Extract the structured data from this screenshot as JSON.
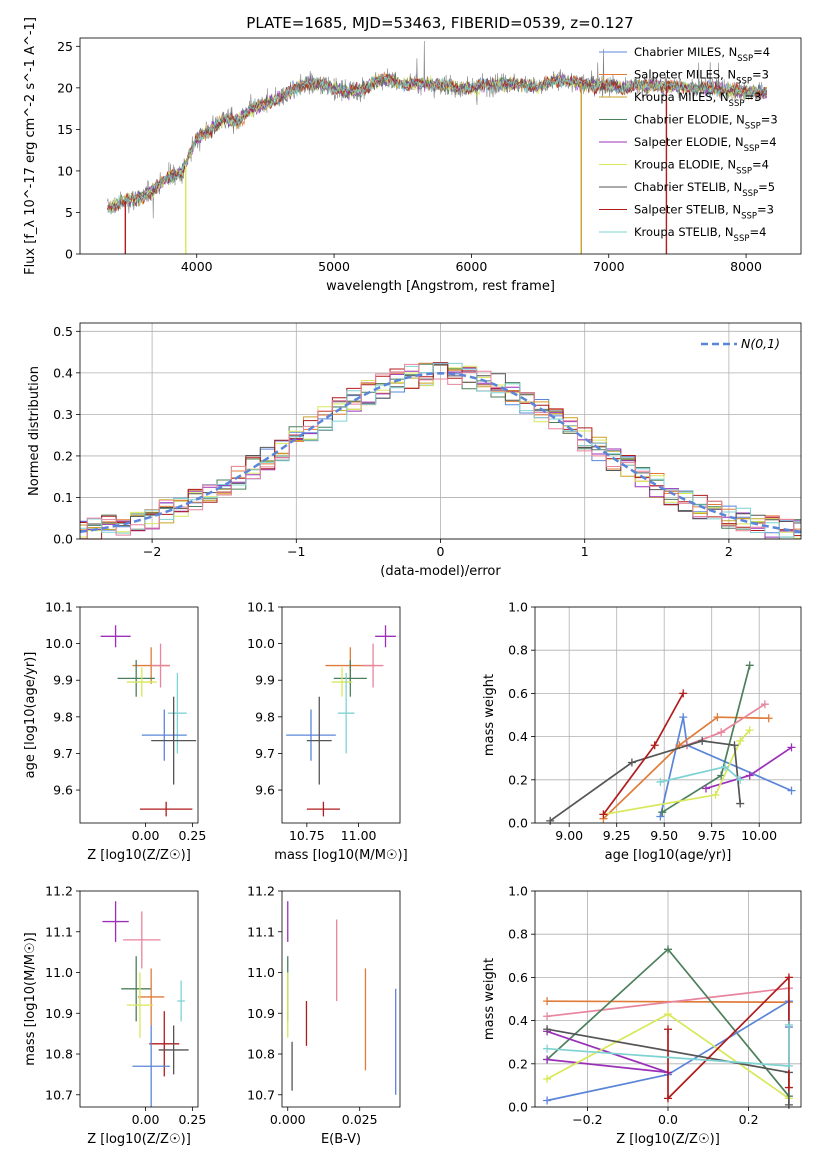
{
  "figure": {
    "title": "PLATE=1685, MJD=53463, FIBERID=0539, z=0.127"
  },
  "chart_data": [
    {
      "id": "spectrum",
      "type": "line",
      "xlabel": "wavelength [Angstrom, rest frame]",
      "ylabel": "Flux [f_λ 10^-17 erg cm^-2 s^-1 A^-1]",
      "xlim": [
        3150,
        8400
      ],
      "ylim": [
        0,
        26
      ],
      "xticks": [
        4000,
        5000,
        6000,
        7000,
        8000
      ],
      "yticks": [
        0,
        5,
        10,
        15,
        20,
        25
      ],
      "grid": false,
      "legend_position": "upper-right",
      "continuum": {
        "x": [
          3350,
          3500,
          3600,
          3700,
          3800,
          3900,
          4000,
          4100,
          4200,
          4300,
          4400,
          4500,
          4600,
          4700,
          4800,
          4900,
          5000,
          5100,
          5200,
          5300,
          5400,
          5500,
          5600,
          5700,
          5800,
          5900,
          6000,
          6100,
          6200,
          6300,
          6400,
          6500,
          6600,
          6700,
          6800,
          6900,
          7000,
          7100,
          7200,
          7300,
          7400,
          7500,
          7600,
          7700,
          7800,
          7900,
          8000,
          8100,
          8150
        ],
        "y": [
          5.5,
          6.5,
          6.8,
          8.0,
          9.3,
          10.0,
          14.0,
          15.0,
          16.2,
          16.0,
          17.5,
          18.0,
          18.8,
          19.8,
          20.5,
          20.5,
          20.0,
          19.5,
          19.8,
          20.8,
          21.0,
          20.5,
          20.5,
          20.5,
          20.3,
          20.0,
          20.0,
          20.3,
          20.5,
          20.5,
          20.4,
          20.0,
          21.0,
          20.8,
          20.5,
          20.3,
          20.3,
          20.0,
          20.3,
          20.3,
          20.2,
          20.2,
          20.0,
          20.0,
          19.8,
          19.7,
          19.5,
          19.5,
          19.5
        ]
      },
      "series": [
        {
          "name": "Chabrier MILES, N_SSP=4",
          "color": "#5b85d9"
        },
        {
          "name": "Salpeter MILES, N_SSP=3",
          "color": "#e07b39"
        },
        {
          "name": "Kroupa MILES, N_SSP=3",
          "color": "#c9a227"
        },
        {
          "name": "Chabrier ELODIE, N_SSP=3",
          "color": "#4c7f5b"
        },
        {
          "name": "Salpeter ELODIE, N_SSP=4",
          "color": "#9b30b8"
        },
        {
          "name": "Kroupa ELODIE, N_SSP=4",
          "color": "#d8e85a"
        },
        {
          "name": "Chabrier STELIB, N_SSP=5",
          "color": "#555555"
        },
        {
          "name": "Salpeter STELIB, N_SSP=3",
          "color": "#b01c1c"
        },
        {
          "name": "Kroupa STELIB, N_SSP=4",
          "color": "#7fd2d2"
        }
      ],
      "spikes": [
        {
          "x": 3480,
          "color": "#b01c1c"
        },
        {
          "x": 3920,
          "color": "#d8e85a"
        },
        {
          "x": 6800,
          "color": "#c9a227"
        },
        {
          "x": 7420,
          "color": "#b01c1c"
        }
      ]
    },
    {
      "id": "residuals",
      "type": "line",
      "xlabel": "(data-model)/error",
      "ylabel": "Normed distribution",
      "xlim": [
        -2.5,
        2.5
      ],
      "ylim": [
        0,
        0.52
      ],
      "xticks": [
        -2,
        -1,
        0,
        1,
        2
      ],
      "yticks": [
        0.0,
        0.1,
        0.2,
        0.3,
        0.4,
        0.5
      ],
      "grid": true,
      "legend_position": "upper-right",
      "reference": {
        "name": "N(0,1)",
        "color": "#5b85d9",
        "style": "dashed"
      },
      "bin_width": 0.1
    },
    {
      "id": "age-vs-Z",
      "type": "errorbar",
      "xlabel": "Z [log10(Z/Z☉)]",
      "ylabel": "age  [log10(age/yr)]",
      "xlim": [
        -0.35,
        0.28
      ],
      "ylim": [
        9.51,
        10.1
      ],
      "xticks": [
        0.0,
        0.25
      ],
      "yticks": [
        9.6,
        9.7,
        9.8,
        9.9,
        10.0,
        10.1
      ],
      "points": [
        {
          "x": -0.16,
          "y": 10.02,
          "xerr": 0.08,
          "yerr": 0.03,
          "color": "#9b30b8"
        },
        {
          "x": 0.03,
          "y": 9.94,
          "xerr": 0.1,
          "yerr": 0.05,
          "color": "#e07b39"
        },
        {
          "x": 0.08,
          "y": 9.94,
          "xerr": 0.05,
          "yerr": 0.06,
          "color": "#e8849c"
        },
        {
          "x": -0.05,
          "y": 9.905,
          "xerr": 0.1,
          "yerr": 0.05,
          "color": "#4c7f5b"
        },
        {
          "x": -0.02,
          "y": 9.895,
          "xerr": 0.08,
          "yerr": 0.04,
          "color": "#d8e85a"
        },
        {
          "x": 0.17,
          "y": 9.81,
          "xerr": 0.05,
          "yerr": 0.11,
          "color": "#7fd2d2"
        },
        {
          "x": 0.1,
          "y": 9.75,
          "xerr": 0.12,
          "yerr": 0.07,
          "color": "#5b85d9"
        },
        {
          "x": 0.15,
          "y": 9.735,
          "xerr": 0.12,
          "yerr": 0.12,
          "color": "#555555"
        },
        {
          "x": 0.11,
          "y": 9.548,
          "xerr": 0.14,
          "yerr": 0.02,
          "color": "#b01c1c"
        }
      ]
    },
    {
      "id": "age-vs-mass",
      "type": "errorbar",
      "xlabel": "mass [log10(M/M☉)]",
      "ylabel": "",
      "xlim": [
        10.63,
        11.2
      ],
      "ylim": [
        9.51,
        10.1
      ],
      "xticks": [
        10.75,
        11.0
      ],
      "yticks": [
        9.6,
        9.7,
        9.8,
        9.9,
        10.0,
        10.1
      ],
      "points": [
        {
          "x": 11.13,
          "y": 10.02,
          "xerr": 0.05,
          "yerr": 0.03,
          "color": "#9b30b8"
        },
        {
          "x": 10.96,
          "y": 9.94,
          "xerr": 0.12,
          "yerr": 0.05,
          "color": "#e07b39"
        },
        {
          "x": 11.07,
          "y": 9.94,
          "xerr": 0.05,
          "yerr": 0.06,
          "color": "#e8849c"
        },
        {
          "x": 10.96,
          "y": 9.905,
          "xerr": 0.08,
          "yerr": 0.05,
          "color": "#4c7f5b"
        },
        {
          "x": 10.92,
          "y": 9.895,
          "xerr": 0.05,
          "yerr": 0.04,
          "color": "#d8e85a"
        },
        {
          "x": 10.94,
          "y": 9.81,
          "xerr": 0.04,
          "yerr": 0.11,
          "color": "#7fd2d2"
        },
        {
          "x": 10.77,
          "y": 9.75,
          "xerr": 0.12,
          "yerr": 0.07,
          "color": "#5b85d9"
        },
        {
          "x": 10.81,
          "y": 9.735,
          "xerr": 0.06,
          "yerr": 0.12,
          "color": "#555555"
        },
        {
          "x": 10.83,
          "y": 9.548,
          "xerr": 0.08,
          "yerr": 0.02,
          "color": "#b01c1c"
        }
      ]
    },
    {
      "id": "weight-vs-age",
      "type": "line",
      "xlabel": "age  [log10(age/yr)]",
      "ylabel": "mass weight",
      "xlim": [
        8.82,
        10.22
      ],
      "ylim": [
        0,
        1.0
      ],
      "xticks": [
        9.0,
        9.25,
        9.5,
        9.75,
        10.0
      ],
      "yticks": [
        0.0,
        0.2,
        0.4,
        0.6,
        0.8,
        1.0
      ],
      "grid": true,
      "series": [
        {
          "color": "#5b85d9",
          "x": [
            9.48,
            9.6,
            9.62,
            10.17
          ],
          "y": [
            0.03,
            0.49,
            0.36,
            0.15
          ]
        },
        {
          "color": "#e07b39",
          "x": [
            9.18,
            9.58,
            9.78,
            10.05
          ],
          "y": [
            0.02,
            0.36,
            0.49,
            0.485
          ]
        },
        {
          "color": "#4c7f5b",
          "x": [
            9.49,
            9.8,
            9.95
          ],
          "y": [
            0.05,
            0.22,
            0.73
          ]
        },
        {
          "color": "#9b30b8",
          "x": [
            9.72,
            9.95,
            10.17
          ],
          "y": [
            0.16,
            0.22,
            0.35
          ]
        },
        {
          "color": "#d8e85a",
          "x": [
            9.18,
            9.77,
            9.9,
            9.95
          ],
          "y": [
            0.04,
            0.13,
            0.38,
            0.43
          ]
        },
        {
          "color": "#e8849c",
          "x": [
            9.62,
            9.8,
            10.03
          ],
          "y": [
            0.36,
            0.42,
            0.55
          ]
        },
        {
          "color": "#555555",
          "x": [
            8.9,
            9.33,
            9.7,
            9.87,
            9.9
          ],
          "y": [
            0.01,
            0.28,
            0.38,
            0.36,
            0.09
          ]
        },
        {
          "color": "#b01c1c",
          "x": [
            9.18,
            9.45,
            9.6
          ],
          "y": [
            0.04,
            0.36,
            0.6
          ]
        },
        {
          "color": "#7fd2d2",
          "x": [
            9.48,
            9.82,
            9.9
          ],
          "y": [
            0.19,
            0.26,
            0.2
          ]
        }
      ]
    },
    {
      "id": "mass-vs-Z",
      "type": "errorbar",
      "xlabel": "Z [log10(Z/Z☉)]",
      "ylabel": "mass [log10(M/M☉)]",
      "xlim": [
        -0.35,
        0.28
      ],
      "ylim": [
        10.67,
        11.2
      ],
      "xticks": [
        0.0,
        0.25
      ],
      "yticks": [
        10.7,
        10.8,
        10.9,
        11.0,
        11.1,
        11.2
      ],
      "points": [
        {
          "x": -0.16,
          "y": 11.125,
          "xerr": 0.07,
          "yerr": 0.05,
          "color": "#9b30b8"
        },
        {
          "x": -0.02,
          "y": 11.08,
          "xerr": 0.1,
          "yerr": 0.07,
          "color": "#e8849c"
        },
        {
          "x": -0.05,
          "y": 10.96,
          "xerr": 0.08,
          "yerr": 0.08,
          "color": "#4c7f5b"
        },
        {
          "x": 0.03,
          "y": 10.94,
          "xerr": 0.07,
          "yerr": 0.07,
          "color": "#e07b39"
        },
        {
          "x": -0.03,
          "y": 10.92,
          "xerr": 0.07,
          "yerr": 0.08,
          "color": "#d8e85a"
        },
        {
          "x": 0.19,
          "y": 10.93,
          "xerr": 0.02,
          "yerr": 0.05,
          "color": "#7fd2d2"
        },
        {
          "x": 0.1,
          "y": 10.825,
          "xerr": 0.08,
          "yerr": 0.08,
          "color": "#b01c1c"
        },
        {
          "x": 0.15,
          "y": 10.81,
          "xerr": 0.08,
          "yerr": 0.06,
          "color": "#555555"
        },
        {
          "x": 0.03,
          "y": 10.77,
          "xerr": 0.1,
          "yerr": 0.1,
          "color": "#5b85d9"
        }
      ]
    },
    {
      "id": "mass-vs-EBV",
      "type": "errorbar",
      "xlabel": "E(B-V)",
      "ylabel": "",
      "xlim": [
        -0.002,
        0.039
      ],
      "ylim": [
        10.67,
        11.2
      ],
      "xticks": [
        0.0,
        0.025
      ],
      "yticks": [
        10.7,
        10.8,
        10.9,
        11.0,
        11.1,
        11.2
      ],
      "points": [
        {
          "x": 0.0,
          "y": 11.125,
          "yerr": 0.05,
          "color": "#9b30b8"
        },
        {
          "x": 0.0,
          "y": 10.96,
          "yerr": 0.08,
          "color": "#4c7f5b"
        },
        {
          "x": 0.0,
          "y": 10.92,
          "yerr": 0.08,
          "color": "#d8e85a"
        },
        {
          "x": 0.0015,
          "y": 10.77,
          "yerr": 0.06,
          "color": "#555555"
        },
        {
          "x": 0.0065,
          "y": 10.875,
          "yerr": 0.055,
          "color": "#b01c1c"
        },
        {
          "x": 0.017,
          "y": 11.03,
          "yerr": 0.1,
          "color": "#e8849c"
        },
        {
          "x": 0.027,
          "y": 10.885,
          "yerr": 0.125,
          "color": "#e07b39"
        },
        {
          "x": 0.0375,
          "y": 10.83,
          "yerr": 0.13,
          "color": "#5b85d9"
        }
      ]
    },
    {
      "id": "weight-vs-Z",
      "type": "line",
      "xlabel": "Z [log10(Z/Z☉)]",
      "ylabel": "mass weight",
      "xlim": [
        -0.33,
        0.33
      ],
      "ylim": [
        0,
        1.0
      ],
      "xticks": [
        -0.2,
        0.0,
        0.2
      ],
      "yticks": [
        0.0,
        0.2,
        0.4,
        0.6,
        0.8,
        1.0
      ],
      "grid": true,
      "series": [
        {
          "color": "#e07b39",
          "x": [
            -0.3,
            0.3
          ],
          "y": [
            0.49,
            0.485
          ]
        },
        {
          "color": "#e8849c",
          "x": [
            -0.3,
            0.3
          ],
          "y": [
            0.42,
            0.55
          ]
        },
        {
          "color": "#4c7f5b",
          "x": [
            -0.3,
            0.0,
            0.3
          ],
          "y": [
            0.22,
            0.73,
            0.05
          ]
        },
        {
          "color": "#5b85d9",
          "x": [
            -0.3,
            0.0,
            0.3,
            0.3
          ],
          "y": [
            0.03,
            0.15,
            0.49,
            0.37
          ]
        },
        {
          "color": "#9b30b8",
          "x": [
            -0.3,
            0.0,
            -0.3
          ],
          "y": [
            0.35,
            0.16,
            0.22
          ]
        },
        {
          "color": "#d8e85a",
          "x": [
            -0.3,
            0.0,
            0.3
          ],
          "y": [
            0.13,
            0.43,
            0.04
          ]
        },
        {
          "color": "#555555",
          "x": [
            -0.3,
            0.3,
            0.3
          ],
          "y": [
            0.36,
            0.16,
            0.01
          ]
        },
        {
          "color": "#b01c1c",
          "x": [
            0.0,
            0.0,
            0.3,
            0.3
          ],
          "y": [
            0.36,
            0.04,
            0.6,
            0.09
          ]
        },
        {
          "color": "#7fd2d2",
          "x": [
            -0.3,
            0.3,
            0.3
          ],
          "y": [
            0.27,
            0.19,
            0.38
          ]
        }
      ]
    }
  ]
}
